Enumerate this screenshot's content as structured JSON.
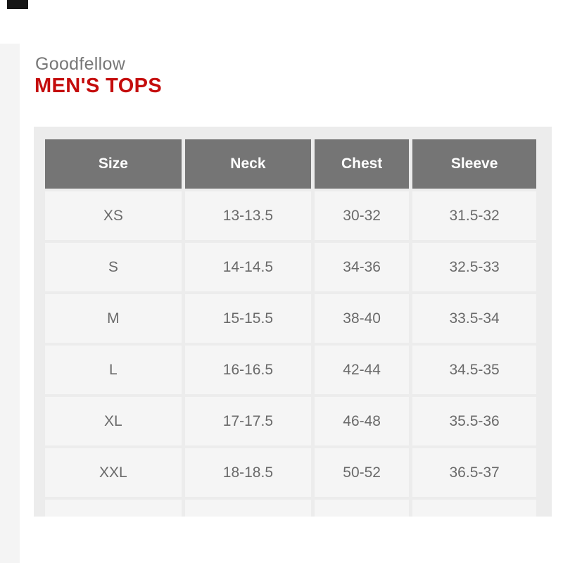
{
  "header": {
    "brand": "Goodfellow",
    "title": "MEN'S TOPS"
  },
  "size_chart": {
    "columns": [
      "Size",
      "Neck",
      "Chest",
      "Sleeve"
    ],
    "rows": [
      [
        "XS",
        "13-13.5",
        "30-32",
        "31.5-32"
      ],
      [
        "S",
        "14-14.5",
        "34-36",
        "32.5-33"
      ],
      [
        "M",
        "15-15.5",
        "38-40",
        "33.5-34"
      ],
      [
        "L",
        "16-16.5",
        "42-44",
        "34.5-35"
      ],
      [
        "XL",
        "17-17.5",
        "46-48",
        "35.5-36"
      ],
      [
        "XXL",
        "18-18.5",
        "50-52",
        "36.5-37"
      ]
    ]
  },
  "colors": {
    "title_red": "#c40c0c",
    "brand_text": "#777777",
    "header_cell_gray": "#757575",
    "cell_bg": "#f5f5f5",
    "panel_bg": "#ececec",
    "left_strip_bg": "#f4f4f4",
    "body_text": "#6a6a6a"
  }
}
